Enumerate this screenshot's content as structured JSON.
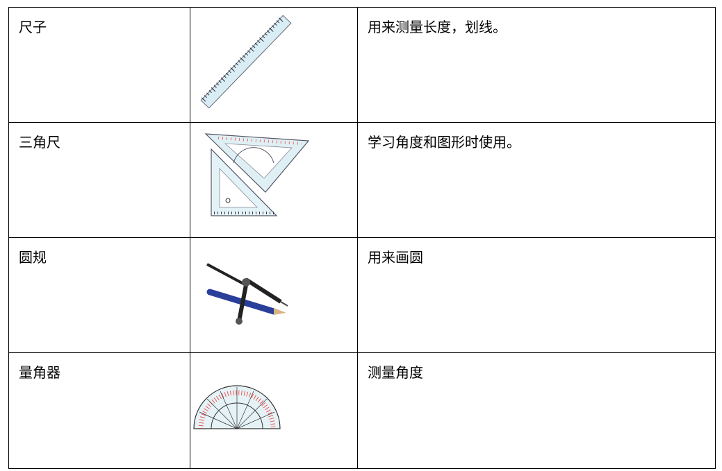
{
  "table": {
    "rows": [
      {
        "name": "尺子",
        "use": "用来测量长度，划线。"
      },
      {
        "name": "三角尺",
        "use": "学习角度和图形时使用。"
      },
      {
        "name": "圆规",
        "use": "用来画圆"
      },
      {
        "name": "量角器",
        "use": "测量角度"
      }
    ]
  }
}
